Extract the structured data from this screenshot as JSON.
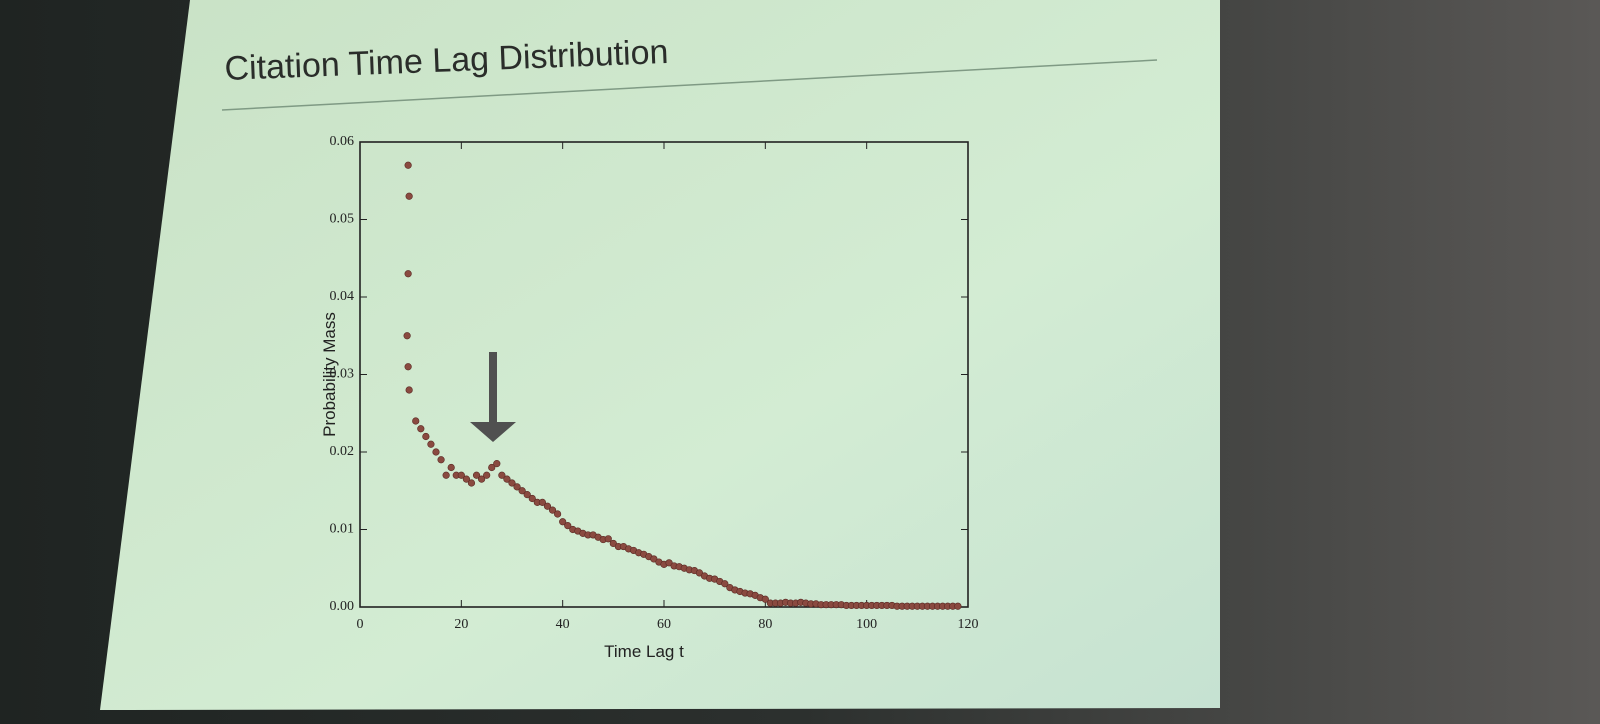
{
  "chart_data": {
    "type": "scatter",
    "title": "Citation Time Lag Distribution",
    "x_label": "Time Lag t",
    "y_label": "Probability Mass",
    "color": "#8a4a40",
    "x": [
      9.5,
      9.7,
      9.5,
      9.3,
      9.5,
      9.7,
      11,
      12,
      13,
      14,
      15,
      16,
      17,
      18,
      19,
      20,
      21,
      22,
      23,
      24,
      25,
      26,
      27,
      28,
      29,
      30,
      31,
      32,
      33,
      34,
      35,
      36,
      37,
      38,
      39,
      40,
      41,
      42,
      43,
      44,
      45,
      46,
      47,
      48,
      49,
      50,
      51,
      52,
      53,
      54,
      55,
      56,
      57,
      58,
      59,
      60,
      61,
      62,
      63,
      64,
      65,
      66,
      67,
      68,
      69,
      70,
      71,
      72,
      73,
      74,
      75,
      76,
      77,
      78,
      79,
      80,
      81,
      82,
      83,
      84,
      85,
      86,
      87,
      88,
      89,
      90,
      91,
      92,
      93,
      94,
      95,
      96,
      97,
      98,
      99,
      100,
      101,
      102,
      103,
      104,
      105,
      106,
      107,
      108,
      109,
      110,
      111,
      112,
      113,
      114,
      115,
      116,
      117,
      118
    ],
    "values": [
      0.057,
      0.053,
      0.043,
      0.035,
      0.031,
      0.028,
      0.024,
      0.023,
      0.022,
      0.021,
      0.02,
      0.019,
      0.017,
      0.018,
      0.017,
      0.017,
      0.0165,
      0.016,
      0.017,
      0.0165,
      0.017,
      0.018,
      0.0185,
      0.017,
      0.0165,
      0.016,
      0.0155,
      0.015,
      0.0145,
      0.014,
      0.0135,
      0.0135,
      0.013,
      0.0125,
      0.012,
      0.011,
      0.0105,
      0.01,
      0.0098,
      0.0095,
      0.0093,
      0.0093,
      0.009,
      0.0087,
      0.0088,
      0.0082,
      0.0078,
      0.0078,
      0.0075,
      0.0073,
      0.007,
      0.0068,
      0.0065,
      0.0062,
      0.0058,
      0.0055,
      0.0057,
      0.0053,
      0.0052,
      0.005,
      0.0048,
      0.0047,
      0.0044,
      0.004,
      0.0037,
      0.0036,
      0.0033,
      0.003,
      0.0025,
      0.0022,
      0.002,
      0.0018,
      0.0017,
      0.0015,
      0.0012,
      0.001,
      0.0005,
      0.0005,
      0.0005,
      0.0006,
      0.0005,
      0.0005,
      0.0006,
      0.0005,
      0.0004,
      0.0004,
      0.0003,
      0.0003,
      0.0003,
      0.0003,
      0.0003,
      0.0002,
      0.0002,
      0.0002,
      0.0002,
      0.0002,
      0.0002,
      0.0002,
      0.0002,
      0.0002,
      0.0002,
      0.0001,
      0.0001,
      0.0001,
      0.0001,
      0.0001,
      0.0001,
      0.0001,
      0.0001,
      0.0001,
      0.0001,
      0.0001,
      0.0001,
      0.0001
    ],
    "xlim": [
      0,
      120
    ],
    "xticks": [
      0,
      20,
      40,
      60,
      80,
      100,
      120
    ],
    "ylim": [
      0,
      0.06
    ],
    "yticks": [
      {
        "value": 0,
        "label": "0.00"
      },
      0.01,
      0.02,
      0.03,
      0.04,
      0.05,
      0.06
    ]
  }
}
